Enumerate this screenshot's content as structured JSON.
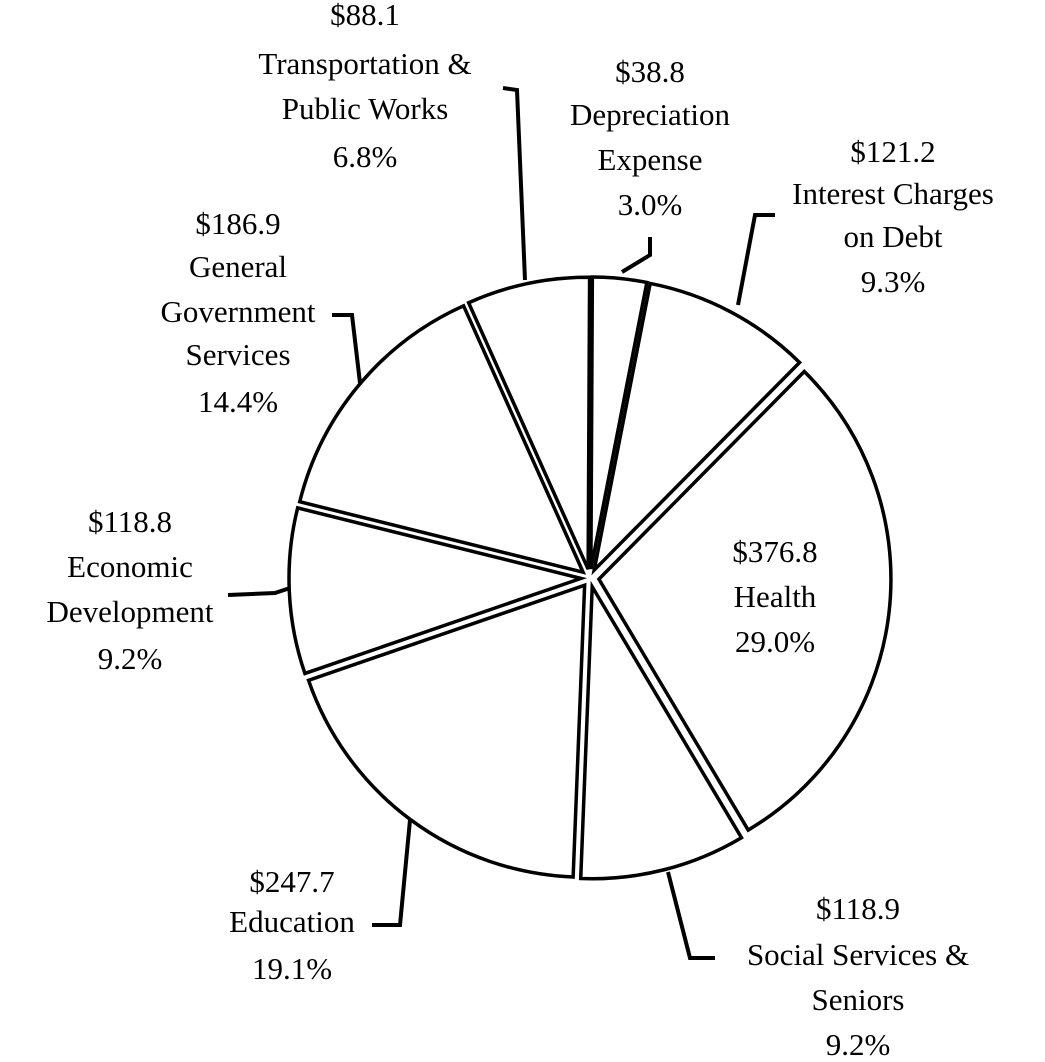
{
  "chart_data": {
    "type": "pie",
    "categories": [
      [
        "Depreciation",
        "Expense"
      ],
      [
        "Interest Charges",
        "on Debt"
      ],
      [
        "Health"
      ],
      [
        "Social Services &",
        "Seniors"
      ],
      [
        "Education"
      ],
      [
        "Economic",
        "Development"
      ],
      [
        "General",
        "Government",
        "Services"
      ],
      [
        "Transportation &",
        "Public Works"
      ]
    ],
    "values": [
      38.8,
      121.2,
      376.8,
      118.9,
      247.7,
      118.8,
      186.9,
      88.1
    ],
    "value_labels": [
      "$38.8",
      "$121.2",
      "$376.8",
      "$118.9",
      "$247.7",
      "$118.8",
      "$186.9",
      "$88.1"
    ],
    "percents": [
      3.0,
      9.3,
      29.0,
      9.2,
      19.1,
      9.2,
      14.4,
      6.8
    ],
    "percent_labels": [
      "3.0%",
      "9.3%",
      "29.0%",
      "9.2%",
      "19.1%",
      "9.2%",
      "14.4%",
      "6.8%"
    ],
    "color": "#ffffff"
  }
}
